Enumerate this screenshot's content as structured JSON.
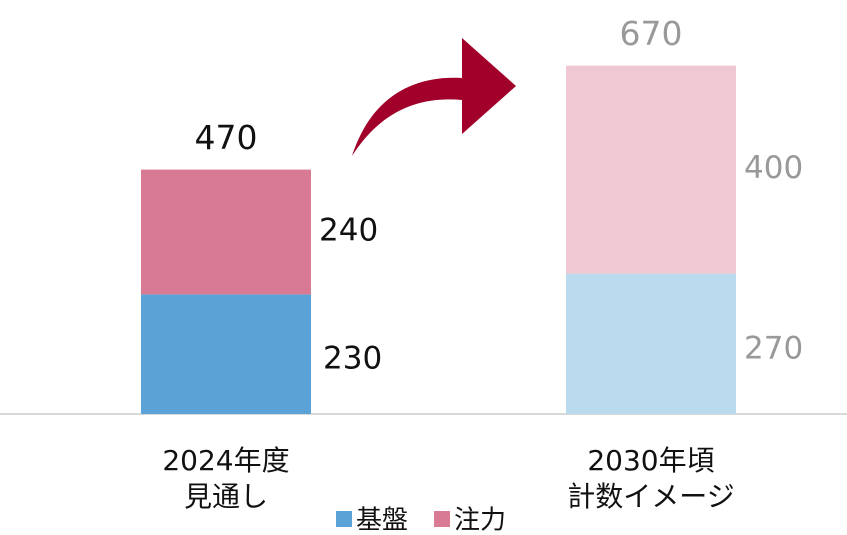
{
  "chart_data": {
    "type": "stacked_bar",
    "categories": [
      [
        "2024年度",
        "見通し"
      ],
      [
        "2030年頃",
        "計数イメージ"
      ]
    ],
    "series": [
      {
        "name": "基盤",
        "color": "#5ba3d6",
        "point_colors": [
          "#5ba3d6",
          "#badaee"
        ],
        "values": [
          230,
          270
        ]
      },
      {
        "name": "注力",
        "color": "#d97a94",
        "point_colors": [
          "#d97a94",
          "#f0c8d3"
        ],
        "values": [
          240,
          400
        ]
      }
    ],
    "totals": [
      470,
      670
    ],
    "label_colors": [
      "#111111",
      "#999999"
    ],
    "ylim": [
      0,
      800
    ],
    "legend": "bottom"
  }
}
